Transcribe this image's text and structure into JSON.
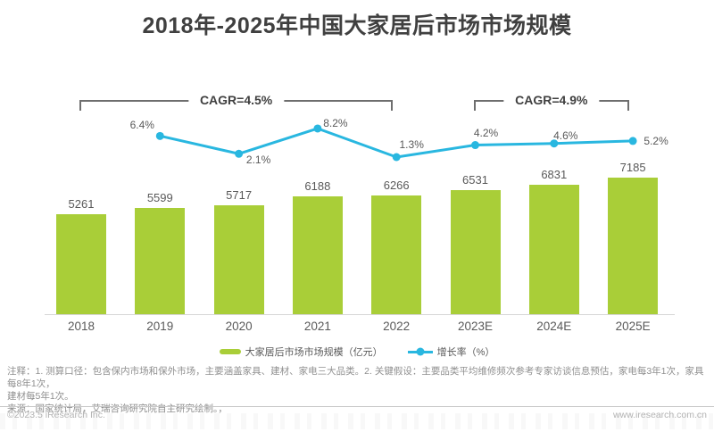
{
  "header": {
    "title": "2018年-2025年中国大家居后市场市场规模"
  },
  "chart_data": {
    "type": "bar",
    "title": "2018年-2025年中国大家居后市场市场规模",
    "categories": [
      "2018",
      "2019",
      "2020",
      "2021",
      "2022",
      "2023E",
      "2024E",
      "2025E"
    ],
    "series": [
      {
        "name": "大家居后市场市场规模（亿元）",
        "type": "bar",
        "values": [
          5261,
          5599,
          5717,
          6188,
          6266,
          6531,
          6831,
          7185
        ],
        "color": "#a9ce38"
      },
      {
        "name": "增长率（%）",
        "type": "line",
        "values": [
          null,
          6.4,
          2.1,
          8.2,
          1.3,
          4.2,
          4.6,
          5.2
        ],
        "unit": "%",
        "color": "#29b7e0"
      }
    ],
    "annotations": [
      {
        "label": "CAGR=4.5%",
        "from": "2018",
        "to": "2022"
      },
      {
        "label": "CAGR=4.9%",
        "from": "2023E",
        "to": "2025E"
      }
    ],
    "xlabel": "",
    "ylabel": "",
    "y_axis": "hidden",
    "grid": false,
    "legend_position": "bottom"
  },
  "legend": {
    "bar_label": "大家居后市场市场规模（亿元）",
    "line_label": "增长率（%）"
  },
  "notes": {
    "line1": "注释：1. 测算口径：包含保内市场和保外市场，主要涵盖家具、建材、家电三大品类。2. 关键假设：主要品类平均维修频次参考专家访谈信息预估，家电每3年1次，家具每8年1次，",
    "line2": "建材每5年1次。",
    "source": "来源：国家统计局，艾瑞咨询研究院自主研究绘制。，"
  },
  "footer": {
    "copyright": "©2023.5 iResearch Inc.",
    "website": "www.iresearch.com.cn"
  },
  "colors": {
    "bar": "#a9ce38",
    "line": "#29b7e0",
    "title_text": "#404040",
    "label_text": "#595959",
    "note_text": "#8f8f8f",
    "footer_text": "#b3b3b3",
    "axis_line": "#d6d6d6",
    "bracket": "#6e6e6e"
  }
}
